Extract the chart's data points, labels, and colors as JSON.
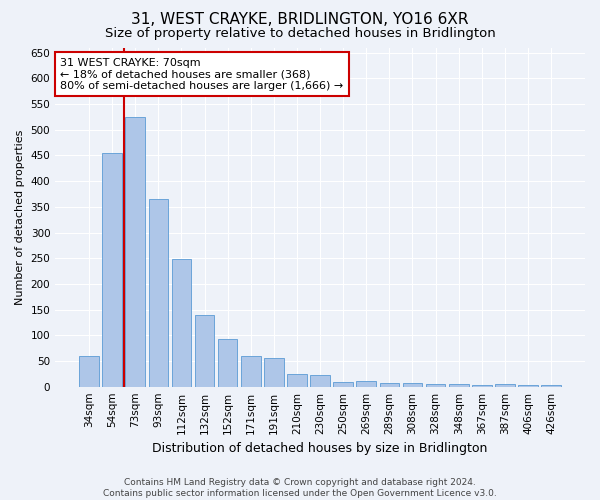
{
  "title": "31, WEST CRAYKE, BRIDLINGTON, YO16 6XR",
  "subtitle": "Size of property relative to detached houses in Bridlington",
  "xlabel": "Distribution of detached houses by size in Bridlington",
  "ylabel": "Number of detached properties",
  "footer_line1": "Contains HM Land Registry data © Crown copyright and database right 2024.",
  "footer_line2": "Contains public sector information licensed under the Open Government Licence v3.0.",
  "annotation_title": "31 WEST CRAYKE: 70sqm",
  "annotation_line2": "← 18% of detached houses are smaller (368)",
  "annotation_line3": "80% of semi-detached houses are larger (1,666) →",
  "bar_color": "#aec6e8",
  "bar_edge_color": "#5b9bd5",
  "red_line_color": "#cc0000",
  "categories": [
    "34sqm",
    "54sqm",
    "73sqm",
    "93sqm",
    "112sqm",
    "132sqm",
    "152sqm",
    "171sqm",
    "191sqm",
    "210sqm",
    "230sqm",
    "250sqm",
    "269sqm",
    "289sqm",
    "308sqm",
    "328sqm",
    "348sqm",
    "367sqm",
    "387sqm",
    "406sqm",
    "426sqm"
  ],
  "values": [
    60,
    455,
    525,
    365,
    248,
    140,
    92,
    60,
    55,
    25,
    22,
    10,
    12,
    7,
    7,
    5,
    5,
    3,
    5,
    3,
    4
  ],
  "ylim": [
    0,
    660
  ],
  "yticks": [
    0,
    50,
    100,
    150,
    200,
    250,
    300,
    350,
    400,
    450,
    500,
    550,
    600,
    650
  ],
  "bg_color": "#eef2f9",
  "grid_color": "#ffffff",
  "annotation_box_color": "#ffffff",
  "annotation_border_color": "#cc0000",
  "title_fontsize": 11,
  "subtitle_fontsize": 9.5,
  "xlabel_fontsize": 9,
  "ylabel_fontsize": 8,
  "tick_fontsize": 7.5,
  "annotation_fontsize": 8,
  "footer_fontsize": 6.5
}
